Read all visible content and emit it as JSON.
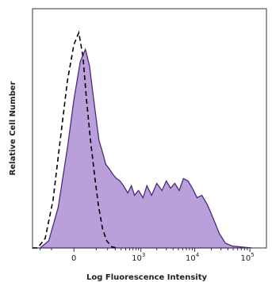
{
  "chart_data": {
    "type": "area",
    "title": "",
    "xlabel": "Log Fluorescence Intensity",
    "ylabel": "Relative Cell Number",
    "x_scale": "biexponential",
    "xlim": [
      -300,
      200000
    ],
    "ylim": [
      0,
      1.0
    ],
    "x_ticks": [
      {
        "value": 0,
        "label": "0",
        "exp": ""
      },
      {
        "value": 1000,
        "label": "10",
        "exp": "3"
      },
      {
        "value": 10000,
        "label": "10",
        "exp": "4"
      },
      {
        "value": 100000,
        "label": "10",
        "exp": "5"
      }
    ],
    "grid": false,
    "legend": "none",
    "colors": {
      "fill": "#b9a0db",
      "stroke": "#4b2a7b",
      "control": "#000000",
      "axis": "#333333"
    },
    "series": [
      {
        "style": "filled-solid",
        "points": [
          [
            -300,
            0.0
          ],
          [
            -200,
            0.0
          ],
          [
            -120,
            0.03
          ],
          [
            -60,
            0.17
          ],
          [
            -20,
            0.42
          ],
          [
            0,
            0.62
          ],
          [
            20,
            0.78
          ],
          [
            40,
            0.83
          ],
          [
            60,
            0.76
          ],
          [
            80,
            0.64
          ],
          [
            100,
            0.54
          ],
          [
            120,
            0.45
          ],
          [
            150,
            0.4
          ],
          [
            180,
            0.35
          ],
          [
            220,
            0.33
          ],
          [
            260,
            0.31
          ],
          [
            320,
            0.29
          ],
          [
            380,
            0.28
          ],
          [
            450,
            0.26
          ],
          [
            550,
            0.23
          ],
          [
            650,
            0.26
          ],
          [
            750,
            0.22
          ],
          [
            900,
            0.24
          ],
          [
            1100,
            0.21
          ],
          [
            1300,
            0.26
          ],
          [
            1600,
            0.22
          ],
          [
            2000,
            0.27
          ],
          [
            2500,
            0.24
          ],
          [
            3000,
            0.28
          ],
          [
            3600,
            0.25
          ],
          [
            4300,
            0.27
          ],
          [
            5200,
            0.24
          ],
          [
            6200,
            0.29
          ],
          [
            7500,
            0.28
          ],
          [
            9000,
            0.25
          ],
          [
            11000,
            0.21
          ],
          [
            13500,
            0.22
          ],
          [
            17000,
            0.18
          ],
          [
            22000,
            0.12
          ],
          [
            28000,
            0.06
          ],
          [
            36000,
            0.02
          ],
          [
            48000,
            0.008
          ],
          [
            70000,
            0.004
          ],
          [
            110000,
            0.0
          ]
        ]
      },
      {
        "style": "dashed",
        "points": [
          [
            -300,
            0.0
          ],
          [
            -230,
            0.0
          ],
          [
            -150,
            0.04
          ],
          [
            -90,
            0.2
          ],
          [
            -50,
            0.45
          ],
          [
            -20,
            0.7
          ],
          [
            0,
            0.85
          ],
          [
            15,
            0.9
          ],
          [
            30,
            0.8
          ],
          [
            45,
            0.62
          ],
          [
            65,
            0.45
          ],
          [
            90,
            0.3
          ],
          [
            115,
            0.18
          ],
          [
            150,
            0.08
          ],
          [
            190,
            0.03
          ],
          [
            250,
            0.005
          ],
          [
            320,
            0.0
          ]
        ]
      }
    ]
  }
}
